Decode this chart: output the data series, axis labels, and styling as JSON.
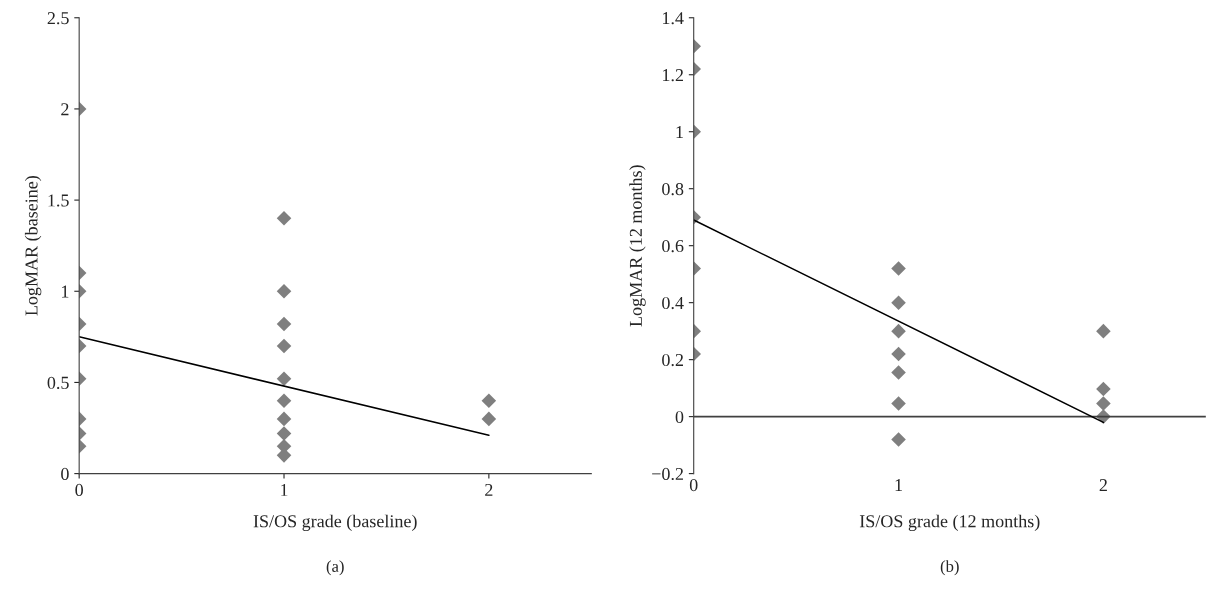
{
  "chart_data": [
    {
      "type": "scatter",
      "xlabel": "IS/OS grade (baseline)",
      "ylabel": "LogMAR (baseine)",
      "annotations": [
        "(a)"
      ],
      "xlim": [
        0,
        2.5
      ],
      "xticks": [
        0,
        1,
        2
      ],
      "ylim": [
        0,
        2.5
      ],
      "yticks": [
        0,
        0.5,
        1,
        1.5,
        2,
        2.5
      ],
      "grid": false,
      "series": [
        {
          "color": "#7f7f7f",
          "marker": "diamond",
          "x": [
            0,
            0,
            0,
            0,
            0,
            0,
            0,
            0,
            0,
            1,
            1,
            1,
            1,
            1,
            1,
            1,
            1,
            1,
            1,
            2,
            2
          ],
          "values": [
            2,
            1.1,
            1,
            0.82,
            0.7,
            0.52,
            0.3,
            0.22,
            0.15,
            1.4,
            1.0,
            0.82,
            0.7,
            0.52,
            0.4,
            0.3,
            0.22,
            0.15,
            0.1,
            0.4,
            0.3
          ]
        },
        {
          "type": "line",
          "color": "#000000",
          "marker": "none",
          "x": [
            0,
            2
          ],
          "values": [
            0.75,
            0.21
          ]
        }
      ]
    },
    {
      "type": "scatter",
      "xlabel": "IS/OS grade (12 months)",
      "ylabel": "LogMAR (12 months)",
      "annotations": [
        "(b)"
      ],
      "xlim": [
        0,
        2.5
      ],
      "xticks": [
        0,
        1,
        2
      ],
      "ylim": [
        -0.2,
        1.4
      ],
      "yticks": [
        {
          "value": -0.2,
          "label": "−0.2"
        },
        0,
        0.2,
        0.4,
        0.6,
        0.8,
        1,
        1.2,
        1.4
      ],
      "grid": false,
      "ref_lines": [
        {
          "axis": "y",
          "value": 0,
          "color": "#404040"
        }
      ],
      "series": [
        {
          "color": "#7f7f7f",
          "marker": "diamond",
          "x": [
            0,
            0,
            0,
            0,
            0,
            0,
            0,
            1,
            1,
            1,
            1,
            1,
            1,
            1,
            2,
            2,
            2,
            2
          ],
          "values": [
            1.3,
            1.22,
            1.0,
            0.7,
            0.52,
            0.3,
            0.22,
            0.52,
            0.4,
            0.3,
            0.22,
            0.155,
            0.046,
            -0.08,
            0.3,
            0.097,
            0.046,
            0
          ]
        },
        {
          "type": "line",
          "color": "#000000",
          "marker": "none",
          "x": [
            0,
            2
          ],
          "values": [
            0.69,
            -0.02
          ]
        }
      ]
    }
  ]
}
